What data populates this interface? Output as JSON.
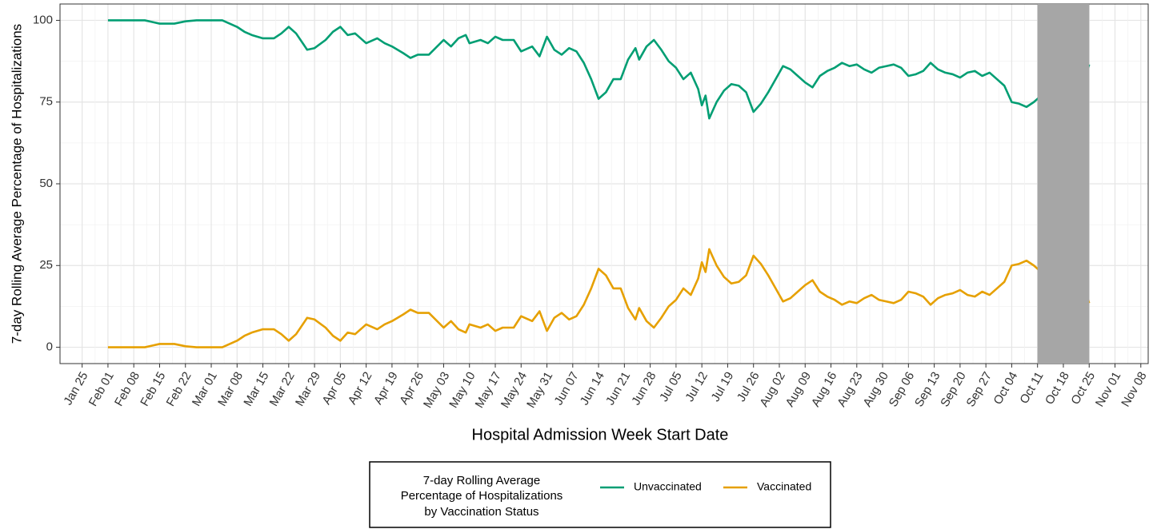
{
  "chart_data": {
    "type": "line",
    "y_label": "7-day Rolling Average Percentage of Hospitalizations",
    "x_label": "Hospital Admission Week Start Date",
    "legend_title": [
      "7-day Rolling Average",
      "Percentage of Hospitalizations",
      "by Vaccination Status"
    ],
    "legend_position": "bottom",
    "grid": true,
    "x": [
      "Feb 01",
      "Feb 08",
      "Feb 11",
      "Feb 13",
      "Feb 15",
      "Feb 19",
      "Feb 22",
      "Feb 25",
      "Mar 01",
      "Mar 04",
      "Mar 06",
      "Mar 08",
      "Mar 10",
      "Mar 12",
      "Mar 15",
      "Mar 18",
      "Mar 20",
      "Mar 22",
      "Mar 24",
      "Mar 27",
      "Mar 29",
      "Apr 01",
      "Apr 03",
      "Apr 05",
      "Apr 07",
      "Apr 09",
      "Apr 12",
      "Apr 15",
      "Apr 17",
      "Apr 19",
      "Apr 22",
      "Apr 24",
      "Apr 26",
      "Apr 29",
      "May 03",
      "May 05",
      "May 07",
      "May 09",
      "May 10",
      "May 13",
      "May 15",
      "May 17",
      "May 19",
      "May 22",
      "May 24",
      "May 27",
      "May 29",
      "May 31",
      "Jun 02",
      "Jun 04",
      "Jun 06",
      "Jun 08",
      "Jun 10",
      "Jun 12",
      "Jun 14",
      "Jun 16",
      "Jun 18",
      "Jun 20",
      "Jun 22",
      "Jun 24",
      "Jun 25",
      "Jun 27",
      "Jun 29",
      "Jul 01",
      "Jul 03",
      "Jul 05",
      "Jul 07",
      "Jul 09",
      "Jul 11",
      "Jul 12",
      "Jul 13",
      "Jul 14",
      "Jul 16",
      "Jul 18",
      "Jul 20",
      "Jul 22",
      "Jul 24",
      "Jul 26",
      "Jul 28",
      "Jul 30",
      "Aug 01",
      "Aug 03",
      "Aug 05",
      "Aug 07",
      "Aug 09",
      "Aug 11",
      "Aug 13",
      "Aug 15",
      "Aug 17",
      "Aug 19",
      "Aug 21",
      "Aug 23",
      "Aug 25",
      "Aug 27",
      "Aug 29",
      "Aug 31",
      "Sep 02",
      "Sep 04",
      "Sep 06",
      "Sep 08",
      "Sep 10",
      "Sep 12",
      "Sep 14",
      "Sep 16",
      "Sep 18",
      "Sep 20",
      "Sep 22",
      "Sep 24",
      "Sep 26",
      "Sep 28",
      "Sep 30",
      "Oct 02",
      "Oct 04",
      "Oct 06",
      "Oct 08",
      "Oct 10",
      "Oct 12",
      "Oct 14",
      "Oct 16",
      "Oct 18",
      "Oct 20",
      "Oct 22",
      "Oct 24",
      "Oct 25"
    ],
    "series": [
      {
        "name": "Unvaccinated",
        "color": "#009e73",
        "values": [
          100,
          100,
          100,
          99.5,
          99,
          99,
          99.7,
          100,
          100,
          100,
          99,
          98,
          96.5,
          95.5,
          94.5,
          94.5,
          96,
          98,
          96,
          91,
          91.5,
          94,
          96.5,
          98,
          95.5,
          96,
          93,
          94.5,
          93,
          92,
          90,
          88.5,
          89.5,
          89.5,
          94,
          92,
          94.5,
          95.5,
          93,
          94,
          93,
          95,
          94,
          94,
          90.5,
          92,
          89,
          95,
          91,
          89.5,
          91.5,
          90.5,
          87,
          82,
          76,
          78,
          82,
          82,
          88,
          91.5,
          88,
          92,
          94,
          91,
          87.5,
          85.5,
          82,
          84,
          79,
          74,
          77,
          70,
          75,
          78.5,
          80.5,
          80,
          78,
          72,
          74.5,
          78,
          82,
          86,
          85,
          83,
          81,
          79.5,
          83,
          84.5,
          85.5,
          87,
          86,
          86.5,
          85,
          84,
          85.5,
          86,
          86.5,
          85.5,
          83,
          83.5,
          84.5,
          87,
          85,
          84,
          83.5,
          82.5,
          84,
          84.5,
          83,
          84,
          82,
          80,
          75,
          74.5,
          73.5,
          75,
          77,
          77.5,
          77.5,
          76,
          76,
          78,
          83,
          86.5
        ]
      },
      {
        "name": "Vaccinated",
        "color": "#e6a000",
        "values": [
          0,
          0,
          0,
          0.5,
          1,
          1,
          0.3,
          0,
          0,
          0,
          1,
          2,
          3.5,
          4.5,
          5.5,
          5.5,
          4,
          2,
          4,
          9,
          8.5,
          6,
          3.5,
          2,
          4.5,
          4,
          7,
          5.5,
          7,
          8,
          10,
          11.5,
          10.5,
          10.5,
          6,
          8,
          5.5,
          4.5,
          7,
          6,
          7,
          5,
          6,
          6,
          9.5,
          8,
          11,
          5,
          9,
          10.5,
          8.5,
          9.5,
          13,
          18,
          24,
          22,
          18,
          18,
          12,
          8.5,
          12,
          8,
          6,
          9,
          12.5,
          14.5,
          18,
          16,
          21,
          26,
          23,
          30,
          25,
          21.5,
          19.5,
          20,
          22,
          28,
          25.5,
          22,
          18,
          14,
          15,
          17,
          19,
          20.5,
          17,
          15.5,
          14.5,
          13,
          14,
          13.5,
          15,
          16,
          14.5,
          14,
          13.5,
          14.5,
          17,
          16.5,
          15.5,
          13,
          15,
          16,
          16.5,
          17.5,
          16,
          15.5,
          17,
          16,
          18,
          20,
          25,
          25.5,
          26.5,
          25,
          23,
          22.5,
          22.5,
          24,
          24,
          22,
          17,
          13.5
        ]
      }
    ],
    "shaded_region": {
      "x": [
        "Oct 11",
        "Oct 25"
      ],
      "color": "#a6a6a6"
    },
    "xlim": [
      "Jan 19",
      "Nov 10"
    ],
    "xticks": [
      "Jan 25",
      "Feb 01",
      "Feb 08",
      "Feb 15",
      "Feb 22",
      "Mar 01",
      "Mar 08",
      "Mar 15",
      "Mar 22",
      "Mar 29",
      "Apr 05",
      "Apr 12",
      "Apr 19",
      "Apr 26",
      "May 03",
      "May 10",
      "May 17",
      "May 24",
      "May 31",
      "Jun 07",
      "Jun 14",
      "Jun 21",
      "Jun 28",
      "Jul 05",
      "Jul 12",
      "Jul 19",
      "Jul 26",
      "Aug 02",
      "Aug 09",
      "Aug 16",
      "Aug 23",
      "Aug 30",
      "Sep 06",
      "Sep 13",
      "Sep 20",
      "Sep 27",
      "Oct 04",
      "Oct 11",
      "Oct 18",
      "Oct 25",
      "Nov 01",
      "Nov 08"
    ],
    "ylim": [
      -5,
      105
    ],
    "yticks": [
      0,
      25,
      50,
      75,
      100
    ]
  }
}
